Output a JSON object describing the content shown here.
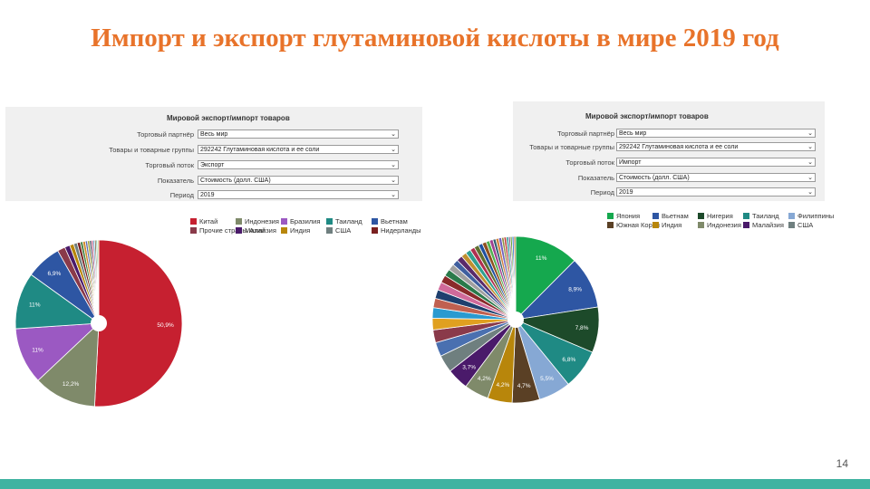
{
  "slide": {
    "title": "Импорт и экспорт глутаминовой кислоты в мире 2019 год",
    "page_number": "14"
  },
  "panels": [
    {
      "form": {
        "title": "Мировой экспорт/импорт товаров",
        "rows": [
          {
            "label": "Торговый партнёр",
            "value": "Весь мир"
          },
          {
            "label": "Товары и товарные группы",
            "value": "292242 Глутаминовая кислота и ее соли"
          },
          {
            "label": "Торговый поток",
            "value": "Экспорт"
          },
          {
            "label": "Показатель",
            "value": "Стоимость (долл. США)"
          },
          {
            "label": "Период",
            "value": "2019"
          }
        ]
      },
      "legend": [
        {
          "label": "Китай",
          "color": "#c62030"
        },
        {
          "label": "Индонезия",
          "color": "#7f8a6a"
        },
        {
          "label": "Бразилия",
          "color": "#9b59c2"
        },
        {
          "label": "Таиланд",
          "color": "#1f8a84"
        },
        {
          "label": "Вьетнам",
          "color": "#2e56a3"
        },
        {
          "label": "Прочие страны Азии",
          "color": "#8a3a4a"
        },
        {
          "label": "Малайзия",
          "color": "#4a1a6a"
        },
        {
          "label": "Индия",
          "color": "#b8860b"
        },
        {
          "label": "США",
          "color": "#6f7f7f"
        },
        {
          "label": "Нидерланды",
          "color": "#7a2020"
        }
      ]
    },
    {
      "form": {
        "title": "Мировой экспорт/импорт товаров",
        "rows": [
          {
            "label": "Торговый партнёр",
            "value": "Весь мир"
          },
          {
            "label": "Товары и товарные группы",
            "value": "292242 Глутаминовая кислота и ее соли"
          },
          {
            "label": "Торговый поток",
            "value": "Импорт"
          },
          {
            "label": "Показатель",
            "value": "Стоимость (долл. США)"
          },
          {
            "label": "Период",
            "value": "2019"
          }
        ]
      },
      "legend": [
        {
          "label": "Япония",
          "color": "#15a84e"
        },
        {
          "label": "Вьетнам",
          "color": "#2e56a3"
        },
        {
          "label": "Нигерия",
          "color": "#1d4a2a"
        },
        {
          "label": "Таиланд",
          "color": "#1f8a84"
        },
        {
          "label": "Филиппины",
          "color": "#86a8d4"
        },
        {
          "label": "Южная Корея",
          "color": "#5a4025"
        },
        {
          "label": "Индия",
          "color": "#b8860b"
        },
        {
          "label": "Индонезия",
          "color": "#7f8a6a"
        },
        {
          "label": "Малайзия",
          "color": "#4a1a6a"
        },
        {
          "label": "США",
          "color": "#6f7f7f"
        }
      ]
    }
  ],
  "chart_data": [
    {
      "type": "pie",
      "slices": [
        {
          "name": "Китай",
          "value": 50.9,
          "label": "50,9%",
          "color": "#c62030"
        },
        {
          "name": "Индонезия",
          "value": 12.2,
          "label": "12,2%",
          "color": "#7f8a6a"
        },
        {
          "name": "Бразилия",
          "value": 11,
          "label": "11%",
          "color": "#9b59c2"
        },
        {
          "name": "Таиланд",
          "value": 11,
          "label": "11%",
          "color": "#1f8a84"
        },
        {
          "name": "Вьетнам",
          "value": 6.9,
          "label": "6,9%",
          "color": "#2e56a3"
        },
        {
          "name": "Прочие страны Азии",
          "value": 1.5,
          "label": "",
          "color": "#8a3a4a"
        },
        {
          "name": "Малайзия",
          "value": 1.0,
          "label": "",
          "color": "#4a1a6a"
        },
        {
          "name": "Индия",
          "value": 0.8,
          "label": "",
          "color": "#b8860b"
        },
        {
          "name": "США",
          "value": 0.7,
          "label": "",
          "color": "#6f7f7f"
        },
        {
          "name": "Нидерланды",
          "value": 0.6,
          "label": "",
          "color": "#7a2020"
        },
        {
          "name": "",
          "value": 0.5,
          "label": "",
          "color": "#3f7f3f"
        },
        {
          "name": "",
          "value": 0.5,
          "label": "",
          "color": "#d08a2a"
        },
        {
          "name": "",
          "value": 0.4,
          "label": "",
          "color": "#5a6ab0"
        },
        {
          "name": "",
          "value": 0.4,
          "label": "",
          "color": "#a0a030"
        },
        {
          "name": "",
          "value": 0.35,
          "label": "",
          "color": "#304050"
        },
        {
          "name": "",
          "value": 0.35,
          "label": "",
          "color": "#c05080"
        },
        {
          "name": "",
          "value": 0.3,
          "label": "",
          "color": "#50a0c0"
        },
        {
          "name": "",
          "value": 0.3,
          "label": "",
          "color": "#806040"
        },
        {
          "name": "",
          "value": 0.25,
          "label": "",
          "color": "#20a070"
        },
        {
          "name": "",
          "value": 0.25,
          "label": "",
          "color": "#d0c060"
        }
      ]
    },
    {
      "type": "pie",
      "slices": [
        {
          "name": "Япония",
          "value": 11,
          "label": "11%",
          "color": "#15a84e"
        },
        {
          "name": "Вьетнам",
          "value": 8.9,
          "label": "8,9%",
          "color": "#2e56a3"
        },
        {
          "name": "Нигерия",
          "value": 7.8,
          "label": "7,8%",
          "color": "#1d4a2a"
        },
        {
          "name": "Таиланд",
          "value": 6.8,
          "label": "6,8%",
          "color": "#1f8a84"
        },
        {
          "name": "Филиппины",
          "value": 5.5,
          "label": "5,5%",
          "color": "#86a8d4"
        },
        {
          "name": "Южная Корея",
          "value": 4.7,
          "label": "4,7%",
          "color": "#5a4025"
        },
        {
          "name": "Индия",
          "value": 4.2,
          "label": "4,2%",
          "color": "#b8860b"
        },
        {
          "name": "Индонезия",
          "value": 4.2,
          "label": "4,2%",
          "color": "#7f8a6a"
        },
        {
          "name": "Малайзия",
          "value": 3.7,
          "label": "3,7%",
          "color": "#4a1a6a"
        },
        {
          "name": "США",
          "value": 3.0,
          "label": "",
          "color": "#6f7f7f"
        },
        {
          "name": "",
          "value": 2.4,
          "label": "",
          "color": "#4a70b0"
        },
        {
          "name": "",
          "value": 2.2,
          "label": "",
          "color": "#8a3a4a"
        },
        {
          "name": "",
          "value": 2.0,
          "label": "",
          "color": "#e0a020"
        },
        {
          "name": "",
          "value": 1.8,
          "label": "",
          "color": "#2a9ad0"
        },
        {
          "name": "",
          "value": 1.6,
          "label": "",
          "color": "#c06050"
        },
        {
          "name": "",
          "value": 1.5,
          "label": "",
          "color": "#1e3f6e"
        },
        {
          "name": "",
          "value": 1.4,
          "label": "",
          "color": "#d06a9a"
        },
        {
          "name": "",
          "value": 1.3,
          "label": "",
          "color": "#8a2a2a"
        },
        {
          "name": "",
          "value": 1.2,
          "label": "",
          "color": "#2a7a4a"
        },
        {
          "name": "",
          "value": 1.1,
          "label": "",
          "color": "#a0a0a0"
        },
        {
          "name": "",
          "value": 1.0,
          "label": "",
          "color": "#3f5f9f"
        },
        {
          "name": "",
          "value": 1.0,
          "label": "",
          "color": "#5a2a6a"
        },
        {
          "name": "",
          "value": 0.9,
          "label": "",
          "color": "#c09030"
        },
        {
          "name": "",
          "value": 0.9,
          "label": "",
          "color": "#30a090"
        },
        {
          "name": "",
          "value": 0.8,
          "label": "",
          "color": "#b03050"
        },
        {
          "name": "",
          "value": 0.8,
          "label": "",
          "color": "#607030"
        },
        {
          "name": "",
          "value": 0.7,
          "label": "",
          "color": "#2050a0"
        },
        {
          "name": "",
          "value": 0.7,
          "label": "",
          "color": "#905020"
        },
        {
          "name": "",
          "value": 0.6,
          "label": "",
          "color": "#50b050"
        },
        {
          "name": "",
          "value": 0.6,
          "label": "",
          "color": "#a04090"
        },
        {
          "name": "",
          "value": 0.5,
          "label": "",
          "color": "#306070"
        },
        {
          "name": "",
          "value": 0.5,
          "label": "",
          "color": "#d08040"
        },
        {
          "name": "",
          "value": 0.5,
          "label": "",
          "color": "#7060c0"
        },
        {
          "name": "",
          "value": 0.4,
          "label": "",
          "color": "#909040"
        },
        {
          "name": "",
          "value": 0.4,
          "label": "",
          "color": "#c04040"
        },
        {
          "name": "",
          "value": 0.4,
          "label": "",
          "color": "#40a0a0"
        },
        {
          "name": "",
          "value": 0.3,
          "label": "",
          "color": "#805080"
        },
        {
          "name": "",
          "value": 0.3,
          "label": "",
          "color": "#60a030"
        },
        {
          "name": "",
          "value": 0.3,
          "label": "",
          "color": "#3070d0"
        },
        {
          "name": "",
          "value": 0.3,
          "label": "",
          "color": "#b07030"
        }
      ]
    }
  ]
}
